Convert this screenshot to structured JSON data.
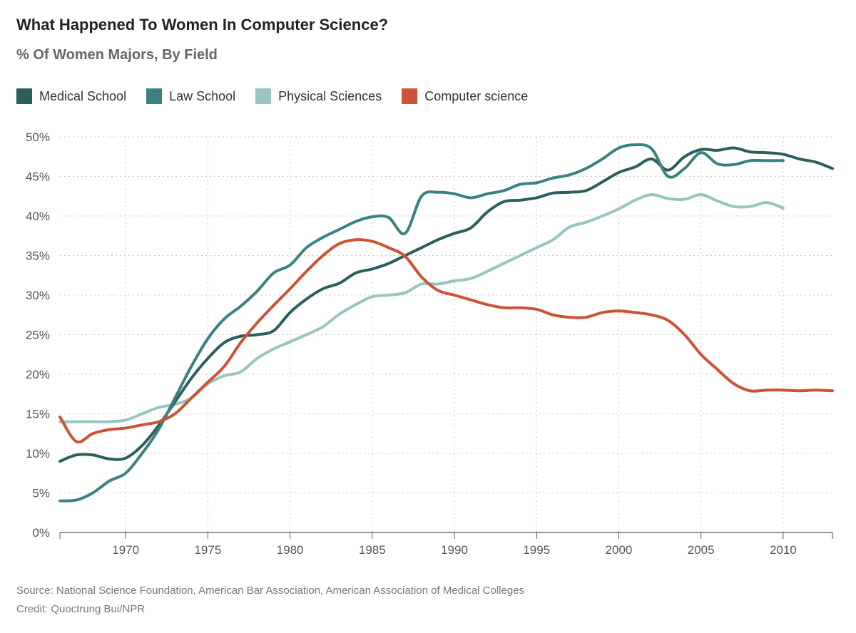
{
  "chart_data": {
    "type": "line",
    "title": "What Happened To Women In Computer Science?",
    "subtitle": "% Of Women Majors, By Field",
    "xlabel": "",
    "ylabel": "",
    "xlim": [
      1966,
      2013
    ],
    "ylim": [
      0,
      50
    ],
    "x_ticks": [
      1970,
      1975,
      1980,
      1985,
      1990,
      1995,
      2000,
      2005,
      2010
    ],
    "y_ticks": [
      0,
      5,
      10,
      15,
      20,
      25,
      30,
      35,
      40,
      45,
      50
    ],
    "y_tick_labels": [
      "0%",
      "5%",
      "10%",
      "15%",
      "20%",
      "25%",
      "30%",
      "35%",
      "40%",
      "45%",
      "50%"
    ],
    "grid": true,
    "legend_position": "top-left",
    "series": [
      {
        "name": "Medical School",
        "color": "#2a5f5b",
        "x": [
          1966,
          1967,
          1968,
          1969,
          1970,
          1971,
          1972,
          1973,
          1974,
          1975,
          1976,
          1977,
          1978,
          1979,
          1980,
          1981,
          1982,
          1983,
          1984,
          1985,
          1986,
          1987,
          1988,
          1989,
          1990,
          1991,
          1992,
          1993,
          1994,
          1995,
          1996,
          1997,
          1998,
          1999,
          2000,
          2001,
          2002,
          2003,
          2004,
          2005,
          2006,
          2007,
          2008,
          2009,
          2010,
          2011,
          2012,
          2013
        ],
        "y": [
          9,
          9.8,
          9.8,
          9.3,
          9.4,
          11,
          13.5,
          16.5,
          19.5,
          22,
          24,
          24.8,
          25,
          25.5,
          27.8,
          29.5,
          30.8,
          31.5,
          32.8,
          33.3,
          34,
          35,
          36,
          37,
          37.8,
          38.5,
          40.5,
          41.8,
          42,
          42.3,
          42.9,
          43,
          43.2,
          44.3,
          45.5,
          46.2,
          47.2,
          45.8,
          47.5,
          48.4,
          48.3,
          48.6,
          48.1,
          48,
          47.8,
          47.2,
          46.8,
          46
        ]
      },
      {
        "name": "Law School",
        "color": "#3a8282",
        "x": [
          1966,
          1967,
          1968,
          1969,
          1970,
          1971,
          1972,
          1973,
          1974,
          1975,
          1976,
          1977,
          1978,
          1979,
          1980,
          1981,
          1982,
          1983,
          1984,
          1985,
          1986,
          1987,
          1988,
          1989,
          1990,
          1991,
          1992,
          1993,
          1994,
          1995,
          1996,
          1997,
          1998,
          1999,
          2000,
          2001,
          2002,
          2003,
          2004,
          2005,
          2006,
          2007,
          2008,
          2009,
          2010
        ],
        "y": [
          4,
          4.1,
          5,
          6.5,
          7.5,
          10,
          13,
          17,
          21,
          24.5,
          27,
          28.6,
          30.5,
          32.8,
          33.8,
          36,
          37.3,
          38.3,
          39.3,
          39.9,
          39.8,
          37.8,
          42.5,
          43,
          42.8,
          42.3,
          42.8,
          43.2,
          44,
          44.2,
          44.8,
          45.2,
          46,
          47.2,
          48.6,
          49,
          48.5,
          45,
          46,
          48,
          46.6,
          46.5,
          47,
          47,
          47
        ]
      },
      {
        "name": "Physical Sciences",
        "color": "#99c4c1",
        "x": [
          1966,
          1967,
          1968,
          1969,
          1970,
          1971,
          1972,
          1973,
          1974,
          1975,
          1976,
          1977,
          1978,
          1979,
          1980,
          1981,
          1982,
          1983,
          1984,
          1985,
          1986,
          1987,
          1988,
          1989,
          1990,
          1991,
          1992,
          1993,
          1994,
          1995,
          1996,
          1997,
          1998,
          1999,
          2000,
          2001,
          2002,
          2003,
          2004,
          2005,
          2006,
          2007,
          2008,
          2009,
          2010
        ],
        "y": [
          14,
          14,
          14,
          14,
          14.2,
          15,
          15.8,
          16.2,
          17,
          18.8,
          19.8,
          20.3,
          22,
          23.2,
          24.1,
          25,
          26,
          27.6,
          28.8,
          29.8,
          30,
          30.3,
          31.4,
          31.4,
          31.8,
          32.1,
          33,
          34,
          35,
          36,
          37,
          38.6,
          39.2,
          40,
          40.9,
          42,
          42.7,
          42.2,
          42.1,
          42.7,
          41.9,
          41.2,
          41.2,
          41.7,
          41
        ]
      },
      {
        "name": "Computer science",
        "color": "#cc5236",
        "x": [
          1966,
          1967,
          1968,
          1969,
          1970,
          1971,
          1972,
          1973,
          1974,
          1975,
          1976,
          1977,
          1978,
          1979,
          1980,
          1981,
          1982,
          1983,
          1984,
          1985,
          1986,
          1987,
          1988,
          1989,
          1990,
          1991,
          1992,
          1993,
          1994,
          1995,
          1996,
          1997,
          1998,
          1999,
          2000,
          2001,
          2002,
          2003,
          2004,
          2005,
          2006,
          2007,
          2008,
          2009,
          2010,
          2011,
          2012,
          2013
        ],
        "y": [
          14.6,
          11.5,
          12.5,
          13,
          13.2,
          13.6,
          14,
          15,
          17,
          19,
          21,
          24,
          26.5,
          28.7,
          30.8,
          33,
          35,
          36.5,
          37,
          36.8,
          36,
          34.9,
          32.3,
          30.6,
          30,
          29.4,
          28.8,
          28.4,
          28.4,
          28.2,
          27.5,
          27.2,
          27.2,
          27.8,
          28,
          27.8,
          27.5,
          26.8,
          25,
          22.5,
          20.6,
          18.8,
          17.9,
          18,
          18,
          17.9,
          18,
          17.9
        ]
      }
    ]
  },
  "footer": {
    "source": "Source: National Science Foundation, American Bar Association, American Association of Medical Colleges",
    "credit": "Credit: Quoctrung Bui/NPR"
  }
}
